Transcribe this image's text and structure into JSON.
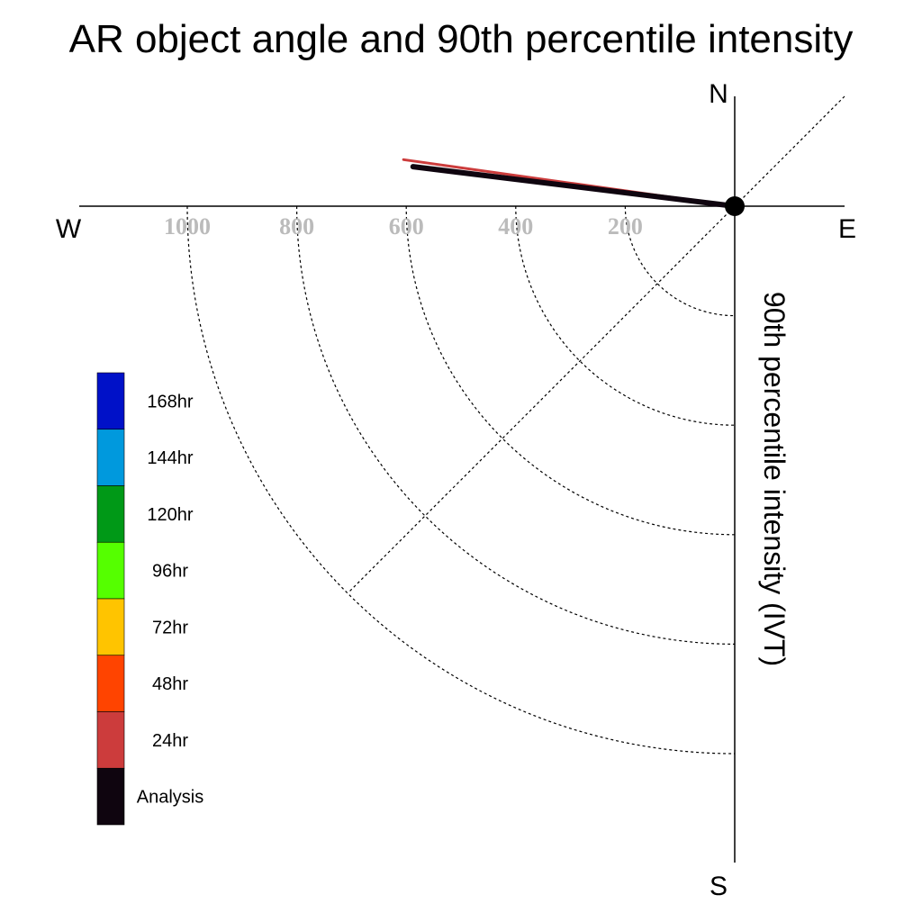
{
  "chart_data": {
    "type": "polar-quadrant",
    "title": "AR object angle and 90th percentile intensity",
    "radial_label": "90th percentile intensity (IVT)",
    "compass": {
      "north": "N",
      "south": "S",
      "east": "E",
      "west": "W"
    },
    "r_ticks": [
      200,
      400,
      600,
      800,
      1000
    ],
    "r_tick_labels": [
      "200",
      "400",
      "600",
      "800",
      "1000"
    ],
    "grid": true,
    "legend_placement": "left",
    "legend": [
      {
        "label": "168hr",
        "color": "#0011c8"
      },
      {
        "label": "144hr",
        "color": "#0099dd"
      },
      {
        "label": "120hr",
        "color": "#009917"
      },
      {
        "label": "96hr",
        "color": "#55ff00"
      },
      {
        "label": "72hr",
        "color": "#ffc400"
      },
      {
        "label": "48hr",
        "color": "#ff4400"
      },
      {
        "label": "24hr",
        "color": "#cc3c3c"
      },
      {
        "label": "Analysis",
        "color": "#0f050f"
      }
    ],
    "series": [
      {
        "name": "Analysis",
        "direction_deg_from_north": -83.0,
        "ivt": 592,
        "color": "#0f050f"
      },
      {
        "name": "24hr",
        "direction_deg_from_north": -82.0,
        "ivt": 611,
        "color": "#cc3c3c"
      }
    ]
  }
}
